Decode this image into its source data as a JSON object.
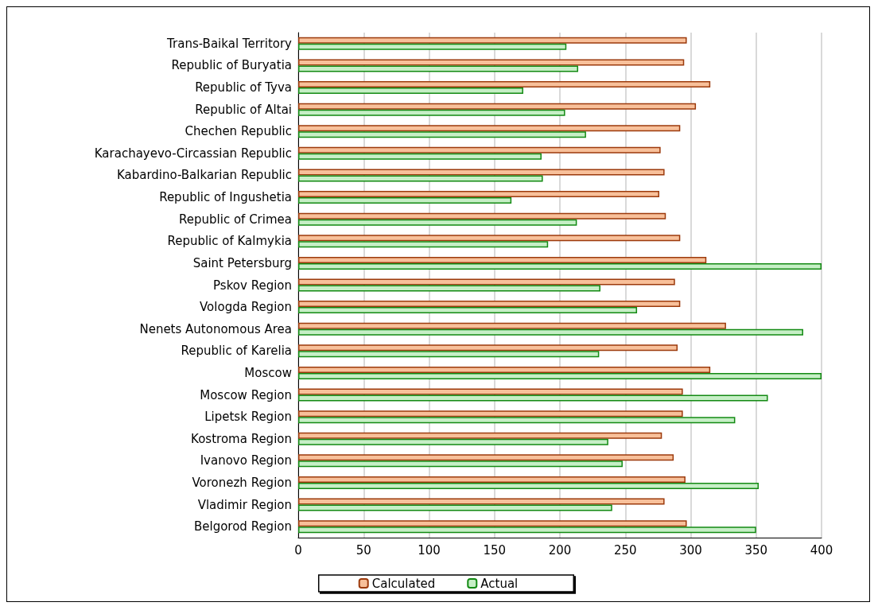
{
  "chart_data": {
    "type": "bar",
    "orientation": "horizontal",
    "categories": [
      "Trans-Baikal Territory",
      "Republic of Buryatia",
      "Republic of Tyva",
      "Republic of Altai",
      "Chechen Republic",
      "Karachayevo-Circassian Republic",
      "Kabardino-Balkarian Republic",
      "Republic of Ingushetia",
      "Republic of Crimea",
      "Republic of Kalmykia",
      "Saint Petersburg",
      "Pskov Region",
      "Vologda Region",
      "Nenets Autonomous Area",
      "Republic of Karelia",
      "Moscow",
      "Moscow Region",
      "Lipetsk Region",
      "Kostroma Region",
      "Ivanovo Region",
      "Voronezh Region",
      "Vladimir Region",
      "Belgorod Region"
    ],
    "series": [
      {
        "name": "Calculated",
        "color": "#f8c09a",
        "values": [
          297,
          295,
          315,
          304,
          292,
          277,
          280,
          276,
          281,
          292,
          312,
          288,
          292,
          327,
          290,
          315,
          294,
          294,
          278,
          287,
          296,
          280,
          297
        ]
      },
      {
        "name": "Actual",
        "color": "#c6efc6",
        "values": [
          205,
          214,
          172,
          204,
          220,
          186,
          187,
          163,
          213,
          191,
          400,
          231,
          259,
          386,
          230,
          400,
          359,
          334,
          237,
          248,
          352,
          240,
          350
        ]
      }
    ],
    "xlim": [
      0,
      400
    ],
    "xticks": [
      0,
      50,
      100,
      150,
      200,
      250,
      300,
      350,
      400
    ],
    "grid": "x",
    "legend": "bottom"
  }
}
